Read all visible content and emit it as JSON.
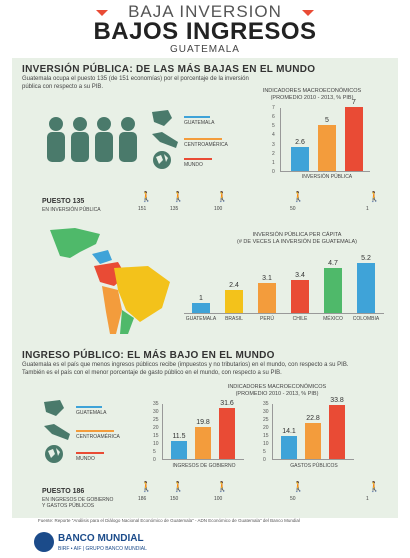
{
  "header": {
    "top": "BAJA INVERSION",
    "main": "BAJOS INGRESOS",
    "sub": "GUATEMALA"
  },
  "inversion": {
    "title": "INVERSIÓN PÚBLICA: DE LAS MÁS BAJAS EN EL MUNDO",
    "text": "Guatemala ocupa el puesto 135 (de 151 economías) por el porcentaje de la inversión pública con respecto a su PIB.",
    "legend": [
      "GUATEMALA",
      "CENTROAMÉRICA",
      "MUNDO"
    ],
    "chart1": {
      "title": "INDICADORES MACROECONÓMICOS\n(PROMEDIO 2010 - 2013, % PIB)",
      "xlabel": "INVERSIÓN PÚBLICA",
      "values": [
        2.6,
        5,
        7
      ],
      "ticks": [
        "7",
        "6",
        "5",
        "4",
        "3",
        "2",
        "1",
        "0"
      ]
    },
    "puesto": {
      "title": "PUESTO 135",
      "sub": "EN INVERSIÓN PÚBLICA",
      "ranks": [
        "151",
        "135",
        "100",
        "50",
        "1"
      ]
    },
    "chart2": {
      "title": "INVERSIÓN PÚBLICA PER CÁPITA\n(# DE VECES LA INVERSIÓN DE GUATEMALA)",
      "categories": [
        "GUATEMALA",
        "BRASIL",
        "PERÚ",
        "CHILE",
        "MÉXICO",
        "COLOMBIA"
      ],
      "values": [
        1,
        2.4,
        3.1,
        3.4,
        4.7,
        5.2
      ]
    }
  },
  "ingreso": {
    "title": "INGRESO PÚBLICO: EL MÁS BAJO EN EL MUNDO",
    "text": "Guatemala es el país que menos ingresos públicos recibe (impuestos y no tributarios) en el mundo, con respecto a su PIB. También es el país con el menor porcentaje de gasto público en el mundo, con respecto a su PIB.",
    "legend": [
      "GUATEMALA",
      "CENTROAMÉRICA",
      "MUNDO"
    ],
    "chart": {
      "title": "INDICADORES MACROECONÓMICOS\n(PROMEDIO 2010 - 2013, % PIB)",
      "groups": [
        {
          "label": "INGRESOS DE GOBIERNO",
          "values": [
            11.5,
            19.8,
            31.6
          ]
        },
        {
          "label": "GASTOS PÚBLICOS",
          "values": [
            14.1,
            22.8,
            33.8
          ]
        }
      ],
      "ticks": [
        "35",
        "30",
        "25",
        "20",
        "15",
        "10",
        "5",
        "0"
      ]
    },
    "puesto": {
      "title": "PUESTO 186",
      "sub": "EN INGRESOS DE GOBIERNO\nY GASTOS PÚBLICOS",
      "ranks": [
        "186",
        "150",
        "100",
        "50",
        "1"
      ]
    }
  },
  "footer": {
    "source": "Fuente: Reporte \"Análisis para el Diálogo Nacional Económico de Guatemala\" - ADN Económico de Guatemala\" del Banco Mundial",
    "org": "BANCO MUNDIAL",
    "org_sub": "BIRF • AIF | GRUPO BANCO MUNDIAL"
  },
  "colors": {
    "guatemala": "#3fa3d8",
    "centroamerica": "#f39c3c",
    "mundo": "#e94b35",
    "green": "#4fb96a",
    "yellow": "#f3c21b"
  }
}
